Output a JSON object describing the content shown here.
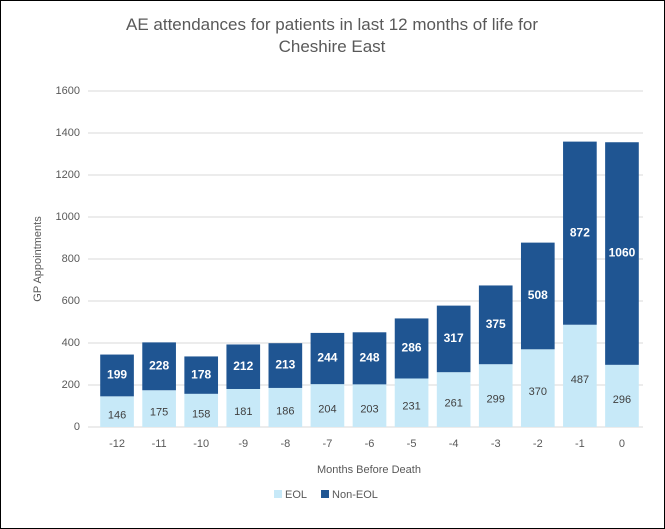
{
  "chart_data": {
    "type": "stacked_bar",
    "title": "AE attendances for patients in last 12 months of life for Cheshire East",
    "y_label": "GP Appointments",
    "x_label": "Months Before Death",
    "categories": [
      "-12",
      "-11",
      "-10",
      "-9",
      "-8",
      "-7",
      "-6",
      "-5",
      "-4",
      "-3",
      "-2",
      "-1",
      "0"
    ],
    "series": [
      {
        "name": "EOL",
        "color": "#c7e9f8",
        "label_color": "#404040",
        "values": [
          146,
          175,
          158,
          181,
          186,
          204,
          203,
          231,
          261,
          299,
          370,
          487,
          296
        ]
      },
      {
        "name": "Non-EOL",
        "color": "#1f5592",
        "label_color": "#ffffff",
        "values": [
          199,
          228,
          178,
          212,
          213,
          244,
          248,
          286,
          317,
          375,
          508,
          872,
          1060
        ]
      }
    ],
    "ylim": [
      0,
      1600
    ],
    "yticks": [
      0,
      200,
      400,
      600,
      800,
      1000,
      1200,
      1400,
      1600
    ],
    "grid": true,
    "legend": "bottom"
  }
}
